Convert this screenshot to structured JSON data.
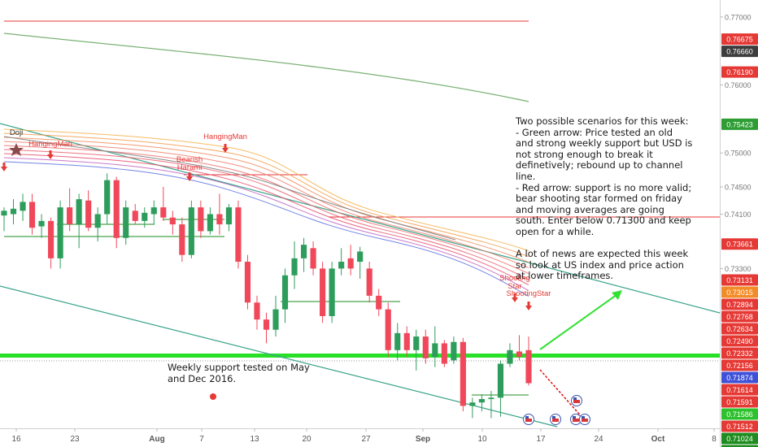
{
  "chart_data": {
    "type": "candlestick",
    "x_ticks": [
      "16",
      "23",
      "Aug",
      "7",
      "13",
      "20",
      "27",
      "Sep",
      "10",
      "17",
      "24",
      "Oct",
      "8"
    ],
    "y_ticks": [
      "0.77000",
      "0.76000",
      "0.75000",
      "0.74500",
      "0.74100",
      "0.73300"
    ],
    "ylim": [
      0.7095,
      0.7725
    ],
    "price_labels": [
      {
        "value": 0.76675,
        "text": "0.76675",
        "color": "#e53935"
      },
      {
        "value": 0.7666,
        "text": "0.76660",
        "color": "#3d3d3d"
      },
      {
        "value": 0.7619,
        "text": "0.76190",
        "color": "#e53935"
      },
      {
        "value": 0.75423,
        "text": "0.75423",
        "color": "#2e9d34"
      },
      {
        "value": 0.73661,
        "text": "0.73661",
        "color": "#e53935"
      },
      {
        "value": 0.73131,
        "text": "0.73131",
        "color": "#e53935"
      },
      {
        "value": 0.73015,
        "text": "0.73015",
        "color": "#f28c28"
      },
      {
        "value": 0.72894,
        "text": "0.72894",
        "color": "#e53935"
      },
      {
        "value": 0.72768,
        "text": "0.72768",
        "color": "#e53935"
      },
      {
        "value": 0.72634,
        "text": "0.72634",
        "color": "#e53935"
      },
      {
        "value": 0.7249,
        "text": "0.72490",
        "color": "#e53935"
      },
      {
        "value": 0.72332,
        "text": "0.72332",
        "color": "#e53935"
      },
      {
        "value": 0.72156,
        "text": "0.72156",
        "color": "#e53935"
      },
      {
        "value": 0.71874,
        "text": "0.71874",
        "color": "#3f51d8"
      },
      {
        "value": 0.71614,
        "text": "0.71614",
        "color": "#e53935"
      },
      {
        "value": 0.71591,
        "text": "0.71591",
        "color": "#e53935"
      },
      {
        "value": 0.71586,
        "text": "0.71586",
        "color": "#2ec12e"
      },
      {
        "value": 0.71512,
        "text": "0.71512",
        "color": "#e53935"
      },
      {
        "value": 0.71024,
        "text": "0.71024",
        "color": "#1f8c1f"
      },
      {
        "value": 0.71024,
        "text": "0.71024",
        "color": "#1f8c1f"
      }
    ],
    "candles": [
      {
        "o": 0.7408,
        "h": 0.742,
        "l": 0.7385,
        "c": 0.7415
      },
      {
        "o": 0.741,
        "h": 0.7432,
        "l": 0.7395,
        "c": 0.7418
      },
      {
        "o": 0.7415,
        "h": 0.744,
        "l": 0.74,
        "c": 0.7428
      },
      {
        "o": 0.7428,
        "h": 0.744,
        "l": 0.738,
        "c": 0.739
      },
      {
        "o": 0.7392,
        "h": 0.741,
        "l": 0.7375,
        "c": 0.74
      },
      {
        "o": 0.74,
        "h": 0.7405,
        "l": 0.733,
        "c": 0.7345
      },
      {
        "o": 0.7345,
        "h": 0.743,
        "l": 0.733,
        "c": 0.742
      },
      {
        "o": 0.742,
        "h": 0.7448,
        "l": 0.7385,
        "c": 0.7395
      },
      {
        "o": 0.7395,
        "h": 0.744,
        "l": 0.736,
        "c": 0.7432
      },
      {
        "o": 0.743,
        "h": 0.7445,
        "l": 0.7385,
        "c": 0.739
      },
      {
        "o": 0.739,
        "h": 0.742,
        "l": 0.737,
        "c": 0.741
      },
      {
        "o": 0.741,
        "h": 0.747,
        "l": 0.7395,
        "c": 0.746
      },
      {
        "o": 0.746,
        "h": 0.7465,
        "l": 0.736,
        "c": 0.7375
      },
      {
        "o": 0.7375,
        "h": 0.743,
        "l": 0.7365,
        "c": 0.742
      },
      {
        "o": 0.7415,
        "h": 0.7425,
        "l": 0.7395,
        "c": 0.74
      },
      {
        "o": 0.74,
        "h": 0.742,
        "l": 0.739,
        "c": 0.7412
      },
      {
        "o": 0.741,
        "h": 0.743,
        "l": 0.7395,
        "c": 0.742
      },
      {
        "o": 0.742,
        "h": 0.745,
        "l": 0.74,
        "c": 0.7405
      },
      {
        "o": 0.7405,
        "h": 0.7415,
        "l": 0.738,
        "c": 0.7395
      },
      {
        "o": 0.7395,
        "h": 0.7405,
        "l": 0.734,
        "c": 0.735
      },
      {
        "o": 0.735,
        "h": 0.743,
        "l": 0.7345,
        "c": 0.742
      },
      {
        "o": 0.742,
        "h": 0.743,
        "l": 0.7375,
        "c": 0.7385
      },
      {
        "o": 0.7385,
        "h": 0.742,
        "l": 0.738,
        "c": 0.741
      },
      {
        "o": 0.741,
        "h": 0.744,
        "l": 0.738,
        "c": 0.7395
      },
      {
        "o": 0.7395,
        "h": 0.7425,
        "l": 0.7385,
        "c": 0.742
      },
      {
        "o": 0.742,
        "h": 0.743,
        "l": 0.733,
        "c": 0.734
      },
      {
        "o": 0.734,
        "h": 0.735,
        "l": 0.727,
        "c": 0.728
      },
      {
        "o": 0.728,
        "h": 0.729,
        "l": 0.724,
        "c": 0.7255
      },
      {
        "o": 0.7255,
        "h": 0.7265,
        "l": 0.722,
        "c": 0.724
      },
      {
        "o": 0.724,
        "h": 0.729,
        "l": 0.723,
        "c": 0.727
      },
      {
        "o": 0.727,
        "h": 0.733,
        "l": 0.725,
        "c": 0.732
      },
      {
        "o": 0.732,
        "h": 0.737,
        "l": 0.73,
        "c": 0.7345
      },
      {
        "o": 0.7345,
        "h": 0.7375,
        "l": 0.7325,
        "c": 0.7365
      },
      {
        "o": 0.736,
        "h": 0.737,
        "l": 0.732,
        "c": 0.733
      },
      {
        "o": 0.733,
        "h": 0.734,
        "l": 0.725,
        "c": 0.726
      },
      {
        "o": 0.726,
        "h": 0.734,
        "l": 0.725,
        "c": 0.733
      },
      {
        "o": 0.733,
        "h": 0.736,
        "l": 0.732,
        "c": 0.734
      },
      {
        "o": 0.7345,
        "h": 0.7365,
        "l": 0.732,
        "c": 0.733
      },
      {
        "o": 0.734,
        "h": 0.7362,
        "l": 0.7315,
        "c": 0.7355
      },
      {
        "o": 0.733,
        "h": 0.734,
        "l": 0.728,
        "c": 0.729
      },
      {
        "o": 0.729,
        "h": 0.73,
        "l": 0.726,
        "c": 0.727
      },
      {
        "o": 0.727,
        "h": 0.728,
        "l": 0.72,
        "c": 0.721
      },
      {
        "o": 0.721,
        "h": 0.725,
        "l": 0.7195,
        "c": 0.7235
      },
      {
        "o": 0.7235,
        "h": 0.7245,
        "l": 0.72,
        "c": 0.721
      },
      {
        "o": 0.721,
        "h": 0.724,
        "l": 0.718,
        "c": 0.723
      },
      {
        "o": 0.723,
        "h": 0.724,
        "l": 0.719,
        "c": 0.7198
      },
      {
        "o": 0.72,
        "h": 0.7245,
        "l": 0.7185,
        "c": 0.722
      },
      {
        "o": 0.722,
        "h": 0.7225,
        "l": 0.7185,
        "c": 0.719
      },
      {
        "o": 0.7195,
        "h": 0.723,
        "l": 0.719,
        "c": 0.7222
      },
      {
        "o": 0.7222,
        "h": 0.7228,
        "l": 0.712,
        "c": 0.7128
      },
      {
        "o": 0.7128,
        "h": 0.714,
        "l": 0.711,
        "c": 0.7133
      },
      {
        "o": 0.7133,
        "h": 0.7145,
        "l": 0.712,
        "c": 0.7138
      },
      {
        "o": 0.7138,
        "h": 0.715,
        "l": 0.711,
        "c": 0.714
      },
      {
        "o": 0.714,
        "h": 0.7195,
        "l": 0.7112,
        "c": 0.719
      },
      {
        "o": 0.719,
        "h": 0.722,
        "l": 0.7185,
        "c": 0.721
      },
      {
        "o": 0.7208,
        "h": 0.7232,
        "l": 0.7195,
        "c": 0.72
      },
      {
        "o": 0.721,
        "h": 0.723,
        "l": 0.7158,
        "c": 0.71614
      }
    ],
    "annotations": [
      "Doji",
      "HangingMan",
      "Bearish",
      "Harami",
      "HangingMan",
      "Shooting",
      "Star",
      "ShootingStar"
    ]
  },
  "notes": {
    "scenarios": "Two possible scenarios for this week:\n- Green arrow: Price tested an old and strong weekly support but USD is not strong enough to break it definetively; rebound up to channel line.\n- Red arrow: support is no more valid; bear shooting star formed on friday and moving averages are going south. Enter below 0.71300 and keep open for a while.\n\nA lot of news are expected this week so look at US index and price action at lower timeframes.",
    "support": "Weekly support tested on May and Dec 2016."
  },
  "colors": {
    "bull": "#2e9d5c",
    "bear": "#f0485a",
    "support_line": "#28e028",
    "resistance_line": "#e53935",
    "trend_line": "#3aa38a",
    "ma_long": "#7bb274",
    "axis_text": "#555555"
  }
}
